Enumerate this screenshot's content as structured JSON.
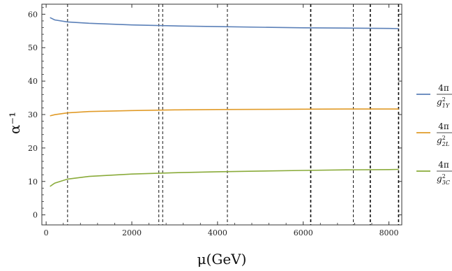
{
  "chart_data": {
    "type": "line",
    "xlabel": "μ(GeV)",
    "ylabel": "α⁻¹",
    "xlim": [
      -100,
      8300
    ],
    "ylim": [
      -3,
      63
    ],
    "x_ticks": [
      "0",
      "2000",
      "4000",
      "6000",
      "8000"
    ],
    "y_ticks": [
      "0",
      "10",
      "20",
      "30",
      "40",
      "50",
      "60"
    ],
    "grid": false,
    "legend_position": "right",
    "vertical_dashed_lines": [
      500,
      2630,
      2720,
      4230,
      6170,
      6180,
      7170,
      7560,
      7570,
      8220,
      8230
    ],
    "series": [
      {
        "name": "4π / g²_1Y",
        "color": "#5b80b8",
        "x": [
          91,
          200,
          500,
          1000,
          2000,
          3000,
          4000,
          5000,
          6000,
          7000,
          8000,
          8230
        ],
        "y": [
          59.0,
          58.3,
          57.7,
          57.3,
          56.8,
          56.5,
          56.3,
          56.1,
          55.95,
          55.85,
          55.75,
          55.7
        ]
      },
      {
        "name": "4π / g²_2L",
        "color": "#e19b28",
        "x": [
          91,
          200,
          500,
          1000,
          2000,
          3000,
          4000,
          5000,
          6000,
          7000,
          8000,
          8230
        ],
        "y": [
          29.6,
          29.95,
          30.5,
          30.9,
          31.2,
          31.4,
          31.5,
          31.55,
          31.6,
          31.65,
          31.65,
          31.65
        ]
      },
      {
        "name": "4π / g²_3C",
        "color": "#8aab3a",
        "x": [
          91,
          200,
          500,
          1000,
          2000,
          3000,
          4000,
          5000,
          6000,
          7000,
          8000,
          8230
        ],
        "y": [
          8.5,
          9.5,
          10.7,
          11.5,
          12.2,
          12.6,
          12.9,
          13.1,
          13.3,
          13.45,
          13.55,
          13.6
        ]
      }
    ]
  },
  "legend": [
    {
      "num": "4π",
      "den_base": "g",
      "den_sup": "2",
      "den_sub": "1Y",
      "color": "#5b80b8"
    },
    {
      "num": "4π",
      "den_base": "g",
      "den_sup": "2",
      "den_sub": "2L",
      "color": "#e19b28"
    },
    {
      "num": "4π",
      "den_base": "g",
      "den_sup": "2",
      "den_sub": "3C",
      "color": "#8aab3a"
    }
  ]
}
